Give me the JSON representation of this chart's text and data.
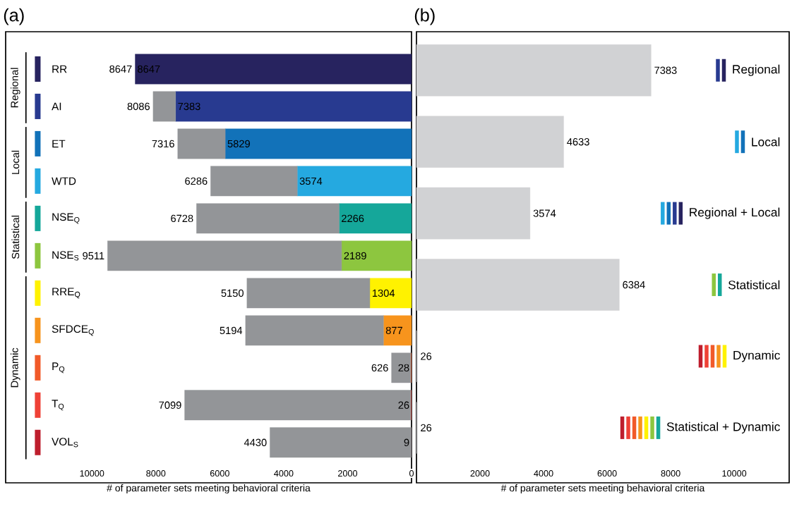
{
  "chart_data": [
    {
      "type": "bar",
      "orientation": "horizontal",
      "stacked": true,
      "title": "(a)",
      "xlabel": "# of parameter sets meeting behavioral criteria",
      "categories": [
        "RR",
        "AI",
        "ET",
        "WTD",
        "NSE$_{Q}$",
        "NSE$_{S}$",
        "RRE$_{Q}$",
        "SFDCE$_{Q}$",
        "P$_{Q}$",
        "T$_{Q}$",
        "VOL$_{S}$"
      ],
      "series": [
        {
          "colors": [
            "#27235f",
            "#283a90",
            "#1272b9",
            "#25a9e0",
            "#15a79a",
            "#8dc63f",
            "#fff200",
            "#f7941d",
            "#f15a29",
            "#ef4136",
            "#be1e2d"
          ],
          "values": [
            8647,
            7383,
            5829,
            3574,
            2266,
            2189,
            1304,
            877,
            28,
            26,
            9
          ],
          "value_labels": [
            "8647",
            "7383",
            "5829",
            "3574",
            "2266",
            "2189",
            "1304",
            "877",
            "28",
            "26",
            "9"
          ]
        },
        {
          "color": "#939598",
          "values": [
            0,
            703,
            1487,
            2712,
            4462,
            7322,
            3846,
            4317,
            598,
            7073,
            4421
          ]
        }
      ],
      "totals": [
        "8647",
        "8086",
        "7316",
        "6286",
        "6728",
        "9511",
        "5150",
        "5194",
        "626",
        "7099",
        "4430"
      ],
      "xlim": [
        12700,
        0
      ],
      "xticks": [
        10000,
        8000,
        6000,
        4000,
        2000,
        0
      ],
      "annotations": [
        "Regional",
        "Local",
        "Statistical",
        "Dynamic"
      ]
    },
    {
      "type": "bar",
      "orientation": "horizontal",
      "title": "(b)",
      "xlabel": "# of parameter sets meeting behavioral criteria",
      "categories": [
        "Regional",
        "Local",
        "Regional + Local",
        "Statistical",
        "Dynamic",
        "Statistical + Dynamic"
      ],
      "values": [
        7383,
        4633,
        3574,
        6384,
        26,
        26
      ],
      "color": "#d1d2d4",
      "xlim": [
        0,
        11730
      ],
      "xticks": [
        2000,
        4000,
        6000,
        8000,
        10000
      ],
      "data_labels": true
    }
  ]
}
